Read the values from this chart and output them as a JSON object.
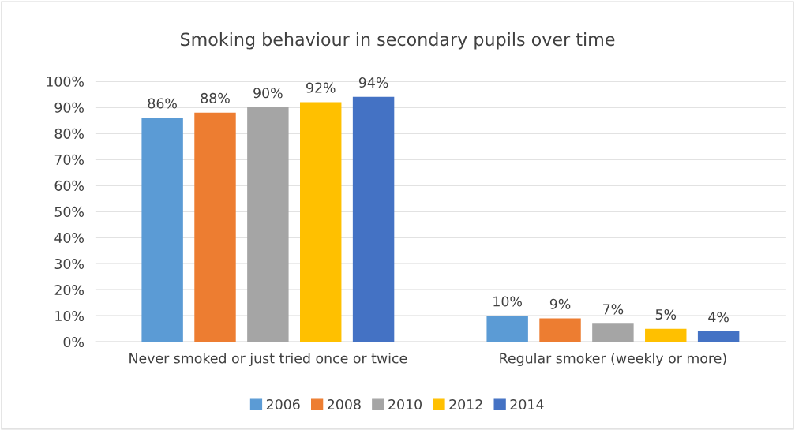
{
  "chart_data": {
    "type": "bar",
    "title": "Smoking behaviour in secondary pupils over time",
    "categories": [
      "Never smoked or just tried once or twice",
      "Regular smoker (weekly or more)"
    ],
    "series": [
      {
        "name": "2006",
        "color": "#5b9bd5",
        "values": [
          86,
          10
        ],
        "value_labels": [
          "86%",
          "10%"
        ]
      },
      {
        "name": "2008",
        "color": "#ed7d31",
        "values": [
          88,
          9
        ],
        "value_labels": [
          "88%",
          "9%"
        ]
      },
      {
        "name": "2010",
        "color": "#a5a5a5",
        "values": [
          90,
          7
        ],
        "value_labels": [
          "90%",
          "7%"
        ]
      },
      {
        "name": "2012",
        "color": "#ffc000",
        "values": [
          92,
          5
        ],
        "value_labels": [
          "92%",
          "5%"
        ]
      },
      {
        "name": "2014",
        "color": "#4472c4",
        "values": [
          94,
          4
        ],
        "value_labels": [
          "94%",
          "4%"
        ]
      }
    ],
    "ylim": [
      0,
      100
    ],
    "yticks": [
      {
        "value": 0,
        "label": "0%"
      },
      {
        "value": 10,
        "label": "10%"
      },
      {
        "value": 20,
        "label": "20%"
      },
      {
        "value": 30,
        "label": "30%"
      },
      {
        "value": 40,
        "label": "40%"
      },
      {
        "value": 50,
        "label": "50%"
      },
      {
        "value": 60,
        "label": "60%"
      },
      {
        "value": 70,
        "label": "70%"
      },
      {
        "value": 80,
        "label": "80%"
      },
      {
        "value": 90,
        "label": "90%"
      },
      {
        "value": 100,
        "label": "100%"
      }
    ],
    "grid": "y",
    "legend": "bottom"
  }
}
